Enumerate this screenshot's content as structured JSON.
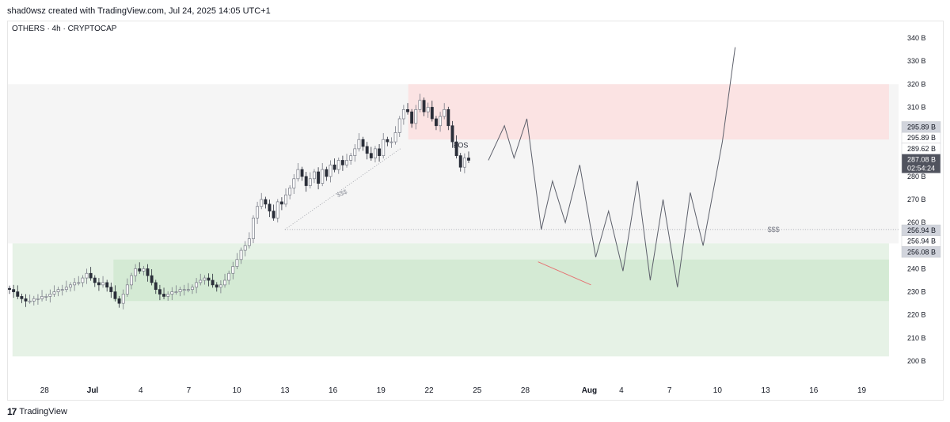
{
  "header": {
    "caption": "shad0wsz created with TradingView.com, Jul 24, 2025 14:05 UTC+1"
  },
  "symbol": {
    "line": "OTHERS · 4h · CRYPTOCAP"
  },
  "footer": {
    "logo_icon": "tradingview-logo-icon",
    "brand": "TradingView"
  },
  "colors": {
    "up": "#787b86",
    "down": "#2a2e39",
    "supply": "#fbe3e3",
    "demand_outer": "#e6f2e6",
    "demand_inner": "#d4ead4",
    "range": "#f5f5f5"
  },
  "chart_data": {
    "type": "candlestick",
    "ylim": [
      200,
      340
    ],
    "y_ticks": [
      {
        "v": 340,
        "label": "340 B"
      },
      {
        "v": 330,
        "label": "330 B"
      },
      {
        "v": 320,
        "label": "320 B"
      },
      {
        "v": 310,
        "label": "310 B"
      },
      {
        "v": 280,
        "label": "280 B"
      },
      {
        "v": 270,
        "label": "270 B"
      },
      {
        "v": 260,
        "label": "260 B"
      },
      {
        "v": 240,
        "label": "240 B"
      },
      {
        "v": 230,
        "label": "230 B"
      },
      {
        "v": 220,
        "label": "220 B"
      },
      {
        "v": 210,
        "label": "210 B"
      },
      {
        "v": 200,
        "label": "200 B"
      }
    ],
    "price_badges": [
      {
        "label": "295.89 B",
        "v": 295.89,
        "style": "light"
      },
      {
        "label": "295.89 B",
        "v": 295.89,
        "style": "plain"
      },
      {
        "label": "289.62 B",
        "v": 289.62,
        "style": "plain"
      },
      {
        "label": "287.08 B",
        "sub": "02:54:24",
        "v": 287.08,
        "style": "dark"
      },
      {
        "label": "256.94 B",
        "v": 256.94,
        "style": "light"
      },
      {
        "label": "256.94 B",
        "v": 256.94,
        "style": "plain"
      },
      {
        "label": "256.08 B",
        "v": 256.08,
        "style": "light"
      }
    ],
    "x_ticks": [
      {
        "d": -3,
        "label": "28"
      },
      {
        "d": 0,
        "label": "Jul",
        "bold": true
      },
      {
        "d": 3,
        "label": "4"
      },
      {
        "d": 6,
        "label": "7"
      },
      {
        "d": 9,
        "label": "10"
      },
      {
        "d": 12,
        "label": "13"
      },
      {
        "d": 15,
        "label": "16"
      },
      {
        "d": 18,
        "label": "19"
      },
      {
        "d": 21,
        "label": "22"
      },
      {
        "d": 24,
        "label": "25"
      },
      {
        "d": 27,
        "label": "28"
      },
      {
        "d": 31,
        "label": "Aug",
        "bold": true
      },
      {
        "d": 33,
        "label": "4"
      },
      {
        "d": 36,
        "label": "7"
      },
      {
        "d": 39,
        "label": "10"
      },
      {
        "d": 42,
        "label": "13"
      },
      {
        "d": 45,
        "label": "16"
      },
      {
        "d": 48,
        "label": "19"
      }
    ],
    "closes": [
      231,
      230,
      228,
      227,
      226,
      226,
      227,
      227,
      228,
      228,
      229,
      230,
      231,
      231,
      232,
      233,
      234,
      234,
      236,
      238,
      236,
      234,
      233,
      234,
      232,
      230,
      227,
      225,
      229,
      233,
      237,
      240,
      239,
      240,
      237,
      234,
      231,
      229,
      228,
      229,
      230,
      230,
      231,
      231,
      231,
      232,
      234,
      235,
      236,
      235,
      233,
      232,
      233,
      235,
      238,
      241,
      244,
      248,
      250,
      253,
      262,
      267,
      270,
      268,
      265,
      262,
      269,
      268,
      272,
      275,
      279,
      283,
      280,
      276,
      279,
      282,
      277,
      283,
      280,
      285,
      283,
      287,
      285,
      287,
      289,
      292,
      296,
      293,
      290,
      288,
      292,
      289,
      296,
      295,
      295,
      299,
      305,
      309,
      308,
      303,
      309,
      313,
      308,
      310,
      305,
      302,
      306,
      309,
      302,
      295,
      289,
      284,
      288,
      287
    ],
    "zones": [
      {
        "name": "supply",
        "y": [
          296,
          320
        ],
        "d": [
          19.7,
          49.7
        ]
      },
      {
        "name": "demand_outer",
        "y": [
          202,
          251
        ],
        "d": [
          -5,
          49.7
        ]
      },
      {
        "name": "demand_inner",
        "y": [
          226,
          244
        ],
        "d": [
          1.3,
          49.7
        ]
      }
    ],
    "liquidity_line": {
      "v": 257,
      "d": [
        12,
        49.7
      ],
      "label": "$$$",
      "label_d": 42.5
    },
    "liquidity_label_2": {
      "label": "$$$",
      "d": 15.3,
      "v": 271
    },
    "bos_label": {
      "label": "BOS",
      "d": 22.5,
      "v": 292.5
    },
    "trendline": [
      [
        12,
        257
      ],
      [
        19.2,
        292
      ]
    ],
    "projection": [
      [
        24.7,
        287
      ],
      [
        25.7,
        302
      ],
      [
        26.3,
        288
      ],
      [
        27.1,
        305
      ],
      [
        28,
        257
      ],
      [
        28.7,
        278
      ],
      [
        29.5,
        260
      ],
      [
        30.4,
        285
      ],
      [
        31.4,
        245
      ],
      [
        32.2,
        265
      ],
      [
        33.1,
        239
      ],
      [
        34,
        278
      ],
      [
        34.8,
        235
      ],
      [
        35.6,
        270
      ],
      [
        36.5,
        232
      ],
      [
        37.3,
        273
      ],
      [
        38.1,
        250
      ],
      [
        39.3,
        295
      ],
      [
        40.1,
        336
      ]
    ],
    "projection_low_line": [
      [
        27.8,
        243
      ],
      [
        31.1,
        233
      ]
    ]
  }
}
